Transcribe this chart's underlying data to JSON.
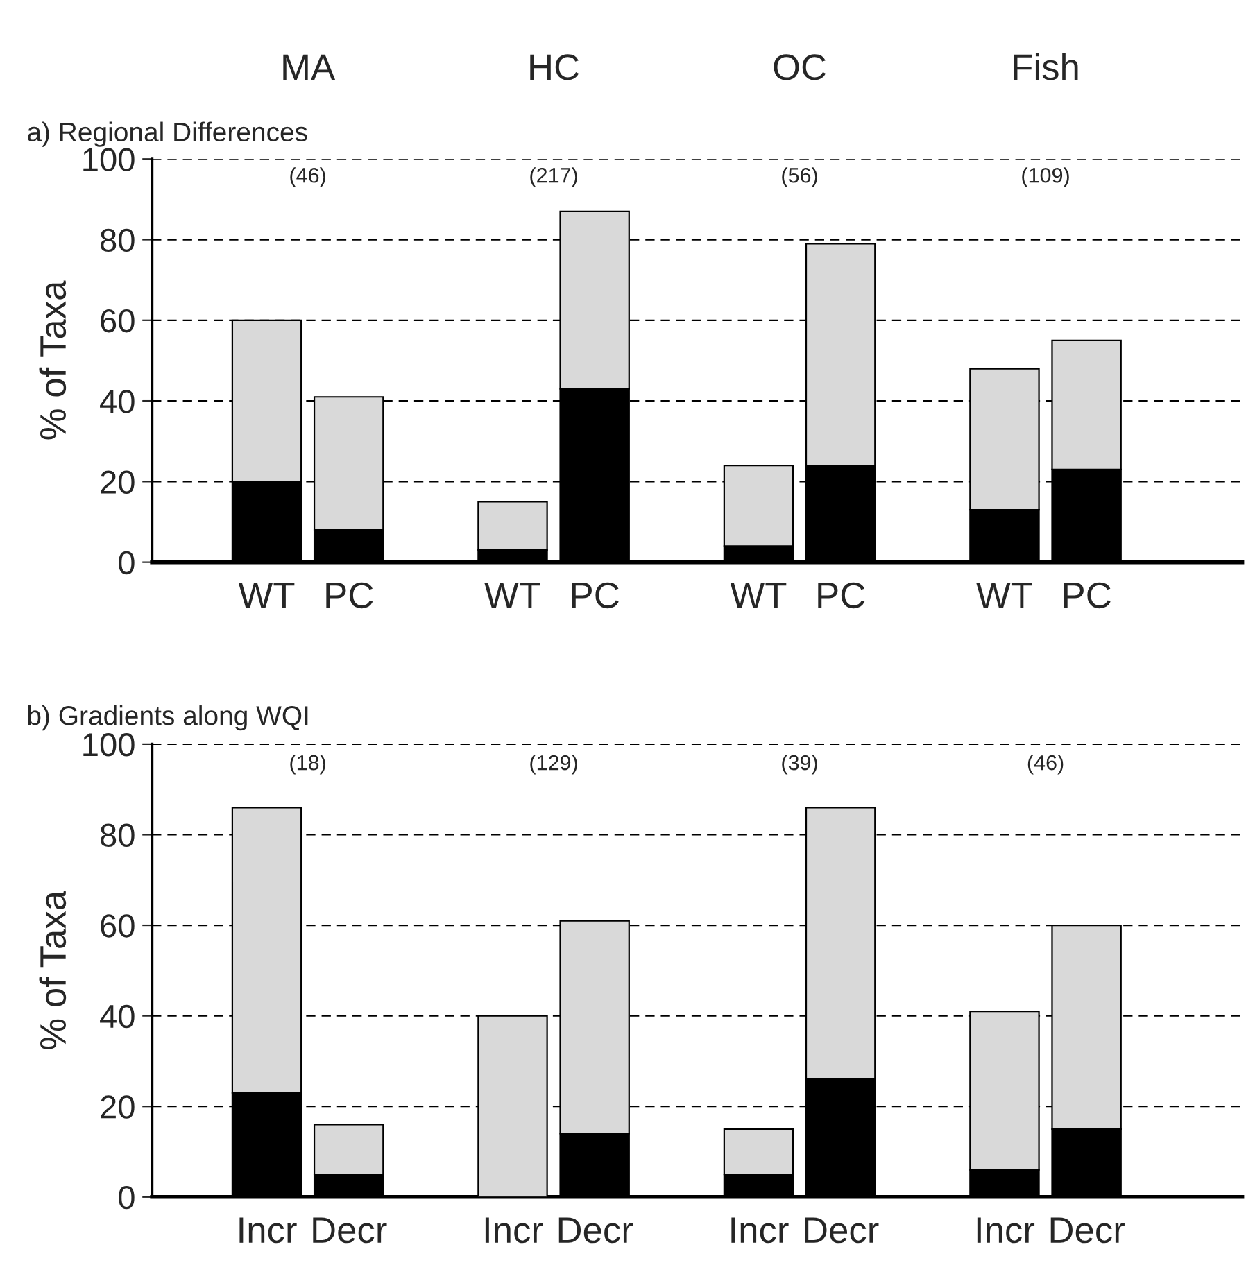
{
  "chart_data": [
    {
      "type": "bar",
      "title": "a) Regional Differences",
      "ylabel": "% of Taxa",
      "stacked": true,
      "grid": "y",
      "categories": [
        "WT",
        "PC",
        "WT",
        "PC",
        "WT",
        "PC",
        "WT",
        "PC"
      ],
      "series": [
        {
          "color": "#000000",
          "values": [
            20,
            8,
            3,
            43,
            4,
            24,
            13,
            23
          ]
        },
        {
          "color": "#d9d9d9",
          "values": [
            40,
            33,
            12,
            44,
            20,
            55,
            35,
            32
          ]
        }
      ],
      "ylim": [
        0,
        100
      ],
      "yticks": [
        0,
        20,
        40,
        60,
        80,
        100
      ],
      "annotations": [
        "(46)",
        "(217)",
        "(56)",
        "(109)",
        "MA",
        "HC",
        "OC",
        "Fish"
      ]
    },
    {
      "type": "bar",
      "title": "b) Gradients along WQI",
      "ylabel": "% of Taxa",
      "stacked": true,
      "grid": "y",
      "categories": [
        "Incr",
        "Decr",
        "Incr",
        "Decr",
        "Incr",
        "Decr",
        "Incr",
        "Decr"
      ],
      "series": [
        {
          "color": "#000000",
          "values": [
            23,
            5,
            0,
            14,
            5,
            26,
            6,
            15
          ]
        },
        {
          "color": "#d9d9d9",
          "values": [
            63,
            11,
            40,
            47,
            10,
            60,
            35,
            45
          ]
        }
      ],
      "ylim": [
        0,
        100
      ],
      "yticks": [
        0,
        20,
        40,
        60,
        80,
        100
      ],
      "annotations": [
        "(18)",
        "(129)",
        "(39)",
        "(46)"
      ]
    }
  ]
}
